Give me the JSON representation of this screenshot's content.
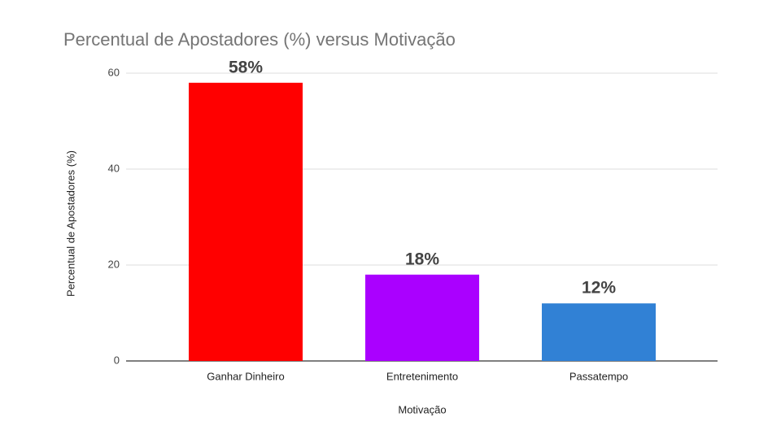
{
  "chart_data": {
    "type": "bar",
    "title": "Percentual de Apostadores (%) versus Motivação",
    "x_label": "Motivação",
    "y_label": "Percentual de Apostadores (%)",
    "categories": [
      "Ganhar Dinheiro",
      "Entretenimento",
      "Passatempo"
    ],
    "values": [
      58,
      18,
      12
    ],
    "value_labels": [
      "58%",
      "18%",
      "12%"
    ],
    "colors": [
      "#ff0000",
      "#aa00ff",
      "#3181d5"
    ],
    "ylim": [
      0,
      60
    ],
    "yticks": [
      0,
      20,
      40,
      60
    ],
    "grid": true
  }
}
